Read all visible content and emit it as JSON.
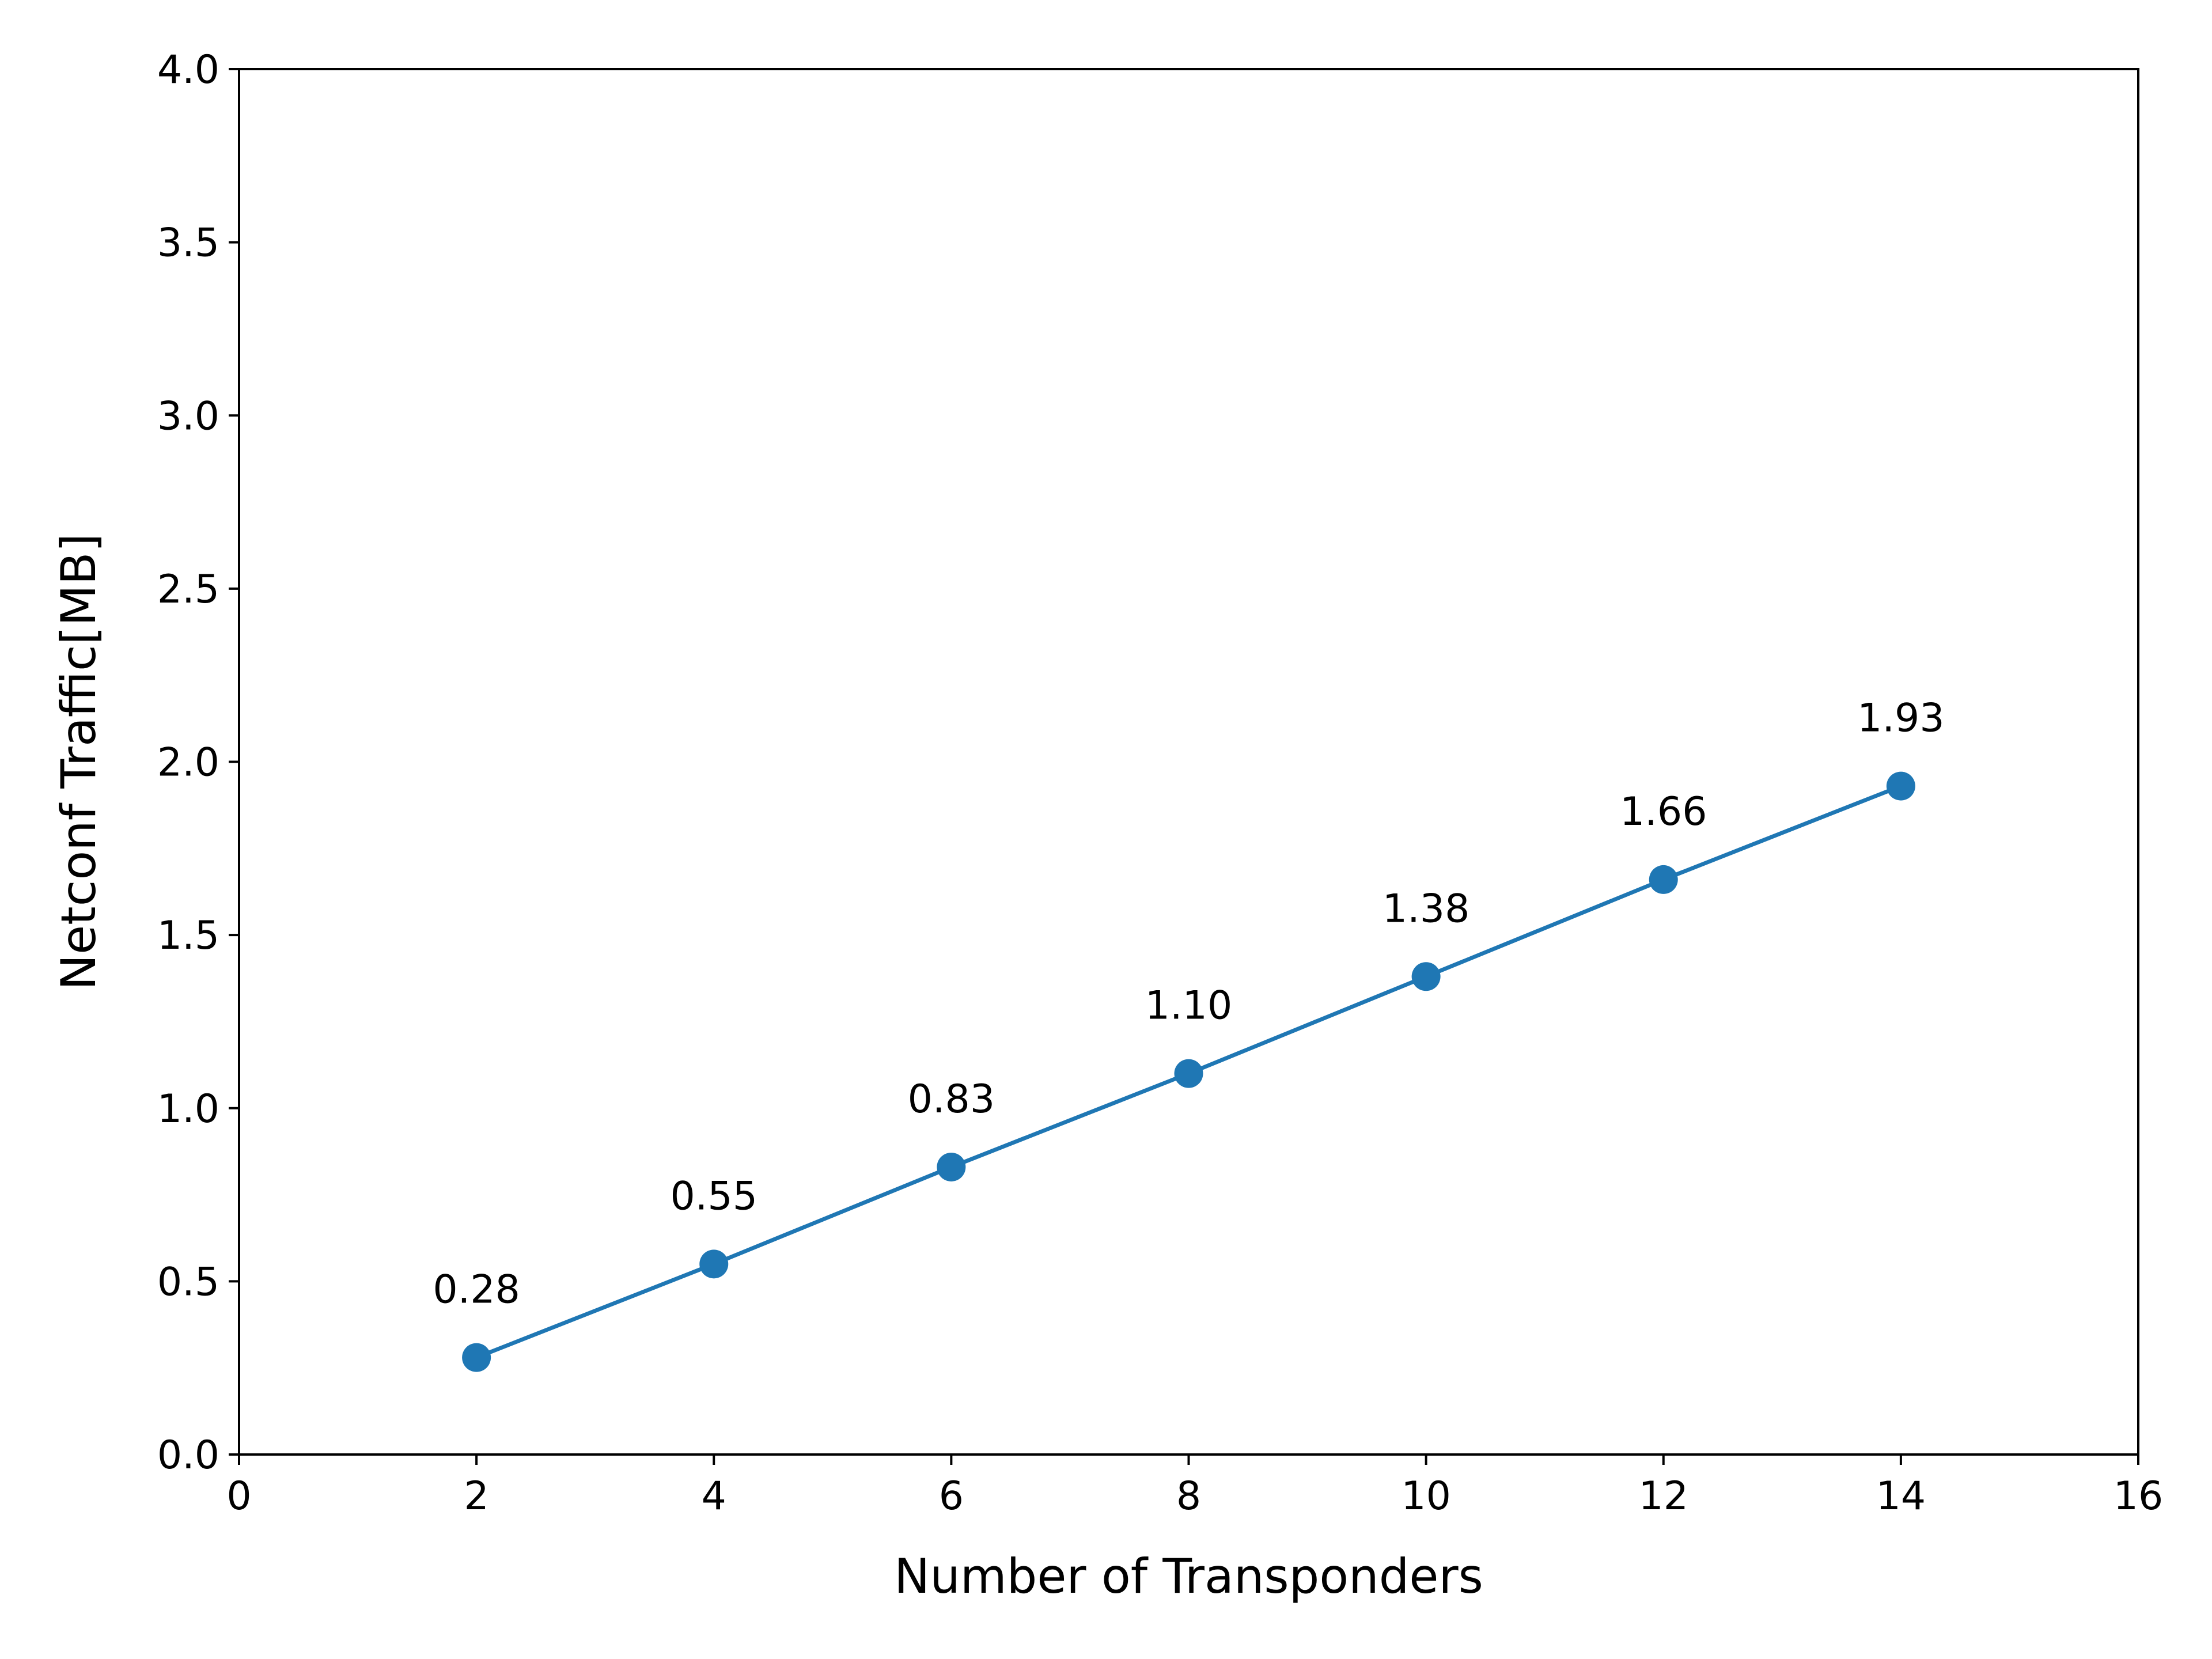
{
  "chart_data": {
    "type": "line",
    "title": "",
    "xlabel": "Number of Transponders",
    "ylabel": "Netconf Traffic[MB]",
    "xlim": [
      0,
      16
    ],
    "ylim": [
      0.0,
      4.0
    ],
    "xticks": [
      0,
      2,
      4,
      6,
      8,
      10,
      12,
      14,
      16
    ],
    "xtick_labels": [
      "0",
      "2",
      "4",
      "6",
      "8",
      "10",
      "12",
      "14",
      "16"
    ],
    "yticks": [
      0.0,
      0.5,
      1.0,
      1.5,
      2.0,
      2.5,
      3.0,
      3.5,
      4.0
    ],
    "ytick_labels": [
      "0.0",
      "0.5",
      "1.0",
      "1.5",
      "2.0",
      "2.5",
      "3.0",
      "3.5",
      "4.0"
    ],
    "grid": false,
    "series": [
      {
        "color": "#1f77b4",
        "marker": "circle",
        "x": [
          2,
          4,
          6,
          8,
          10,
          12,
          14
        ],
        "y": [
          0.28,
          0.55,
          0.83,
          1.1,
          1.38,
          1.66,
          1.93
        ],
        "labels": [
          "0.28",
          "0.55",
          "0.83",
          "1.10",
          "1.38",
          "1.66",
          "1.93"
        ]
      }
    ]
  }
}
